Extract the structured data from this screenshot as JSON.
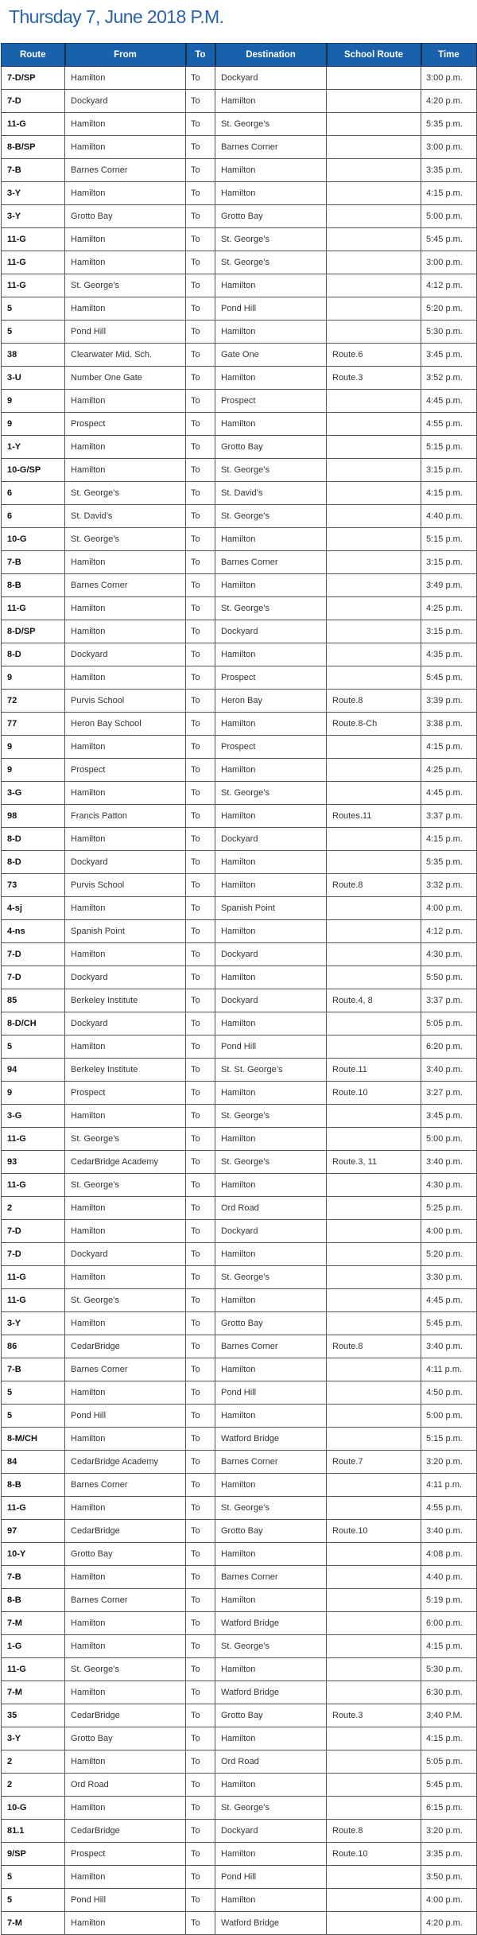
{
  "title": "Thursday 7, June 2018 P.M.",
  "colors": {
    "title": "#2a63ad",
    "header_bg": "#1a61ad",
    "header_text": "#ffffff"
  },
  "table": {
    "headers": [
      "Route",
      "From",
      "To",
      "Destination",
      "School Route",
      "Time"
    ],
    "rows": [
      [
        "7-D/SP",
        "Hamilton",
        "To",
        "Dockyard",
        "",
        "3:00 p.m."
      ],
      [
        "7-D",
        "Dockyard",
        "To",
        "Hamilton",
        "",
        "4:20 p.m."
      ],
      [
        "11-G",
        "Hamilton",
        "To",
        "St. George’s",
        "",
        "5:35 p.m."
      ],
      [
        "8-B/SP",
        "Hamilton",
        "To",
        "Barnes Corner",
        "",
        "3:00 p.m."
      ],
      [
        "7-B",
        "Barnes Corner",
        "To",
        "Hamilton",
        "",
        "3:35 p.m."
      ],
      [
        "3-Y",
        "Hamilton",
        "To",
        "Hamilton",
        "",
        "4:15 p.m."
      ],
      [
        "3-Y",
        "Grotto Bay",
        "To",
        "Grotto Bay",
        "",
        "5:00 p.m."
      ],
      [
        "11-G",
        "Hamilton",
        "To",
        "St. George’s",
        "",
        "5:45 p.m."
      ],
      [
        "11-G",
        "Hamilton",
        "To",
        "St. George’s",
        "",
        "3:00 p.m."
      ],
      [
        "11-G",
        "St. George’s",
        "To",
        "Hamilton",
        "",
        "4:12 p.m."
      ],
      [
        "5",
        "Hamilton",
        "To",
        "Pond Hill",
        "",
        "5:20 p.m."
      ],
      [
        "5",
        "Pond Hill",
        "To",
        "Hamilton",
        "",
        "5:30 p.m."
      ],
      [
        "38",
        "Clearwater Mid. Sch.",
        "To",
        "Gate One",
        "Route.6",
        "3:45 p.m."
      ],
      [
        "3-U",
        "Number One Gate",
        "To",
        "Hamilton",
        "Route.3",
        "3:52 p.m."
      ],
      [
        "9",
        "Hamilton",
        "To",
        "Prospect",
        "",
        "4:45 p.m."
      ],
      [
        "9",
        "Prospect",
        "To",
        "Hamilton",
        "",
        "4:55 p.m."
      ],
      [
        "1-Y",
        "Hamilton",
        "To",
        "Grotto Bay",
        "",
        "5:15 p.m."
      ],
      [
        "10-G/SP",
        "Hamilton",
        "To",
        "St. George’s",
        "",
        "3:15 p.m."
      ],
      [
        "6",
        "St. George’s",
        "To",
        "St. David’s",
        "",
        "4:15 p.m."
      ],
      [
        "6",
        "St. David’s",
        "To",
        "St. George’s",
        "",
        "4:40 p.m."
      ],
      [
        "10-G",
        "St. George’s",
        "To",
        "Hamilton",
        "",
        "5:15 p.m."
      ],
      [
        "7-B",
        "Hamilton",
        "To",
        "Barnes Corner",
        "",
        "3:15 p.m."
      ],
      [
        "8-B",
        "Barnes Corner",
        "To",
        "Hamilton",
        "",
        "3:49 p.m."
      ],
      [
        "11-G",
        "Hamilton",
        "To",
        "St. George’s",
        "",
        "4:25 p.m."
      ],
      [
        "8-D/SP",
        "Hamilton",
        "To",
        "Dockyard",
        "",
        "3:15 p.m."
      ],
      [
        "8-D",
        "Dockyard",
        "To",
        "Hamilton",
        "",
        "4:35 p.m."
      ],
      [
        "9",
        "Hamilton",
        "To",
        "Prospect",
        "",
        "5:45 p.m."
      ],
      [
        "72",
        "Purvis School",
        "To",
        "Heron Bay",
        "Route.8",
        "3:39 p.m."
      ],
      [
        "77",
        "Heron Bay School",
        "To",
        "Hamilton",
        "Route.8-Ch",
        "3:38 p.m."
      ],
      [
        "9",
        "Hamilton",
        "To",
        "Prospect",
        "",
        "4:15 p.m."
      ],
      [
        "9",
        "Prospect",
        "To",
        "Hamilton",
        "",
        "4:25 p.m."
      ],
      [
        "3-G",
        "Hamilton",
        "To",
        "St. George’s",
        "",
        "4:45 p.m."
      ],
      [
        "98",
        "Francis Patton",
        "To",
        "Hamilton",
        "Routes.11",
        "3:37 p.m."
      ],
      [
        "8-D",
        "Hamilton",
        "To",
        "Dockyard",
        "",
        "4:15 p.m."
      ],
      [
        "8-D",
        "Dockyard",
        "To",
        "Hamilton",
        "",
        "5:35 p.m."
      ],
      [
        "73",
        "Purvis School",
        "To",
        "Hamilton",
        "Route.8",
        "3:32 p.m."
      ],
      [
        "4-sj",
        "Hamilton",
        "To",
        "Spanish Point",
        "",
        "4:00 p.m."
      ],
      [
        "4-ns",
        "Spanish Point",
        "To",
        "Hamilton",
        "",
        "4:12 p.m."
      ],
      [
        "7-D",
        "Hamilton",
        "To",
        "Dockyard",
        "",
        "4:30 p.m."
      ],
      [
        "7-D",
        "Dockyard",
        "To",
        "Hamilton",
        "",
        "5:50 p.m."
      ],
      [
        "85",
        "Berkeley Institute",
        "To",
        "Dockyard",
        "Route.4, 8",
        "3:37 p.m."
      ],
      [
        "8-D/CH",
        "Dockyard",
        "To",
        "Hamilton",
        "",
        "5:05 p.m."
      ],
      [
        "5",
        "Hamilton",
        "To",
        "Pond Hill",
        "",
        "6:20 p.m."
      ],
      [
        "94",
        "Berkeley Institute",
        "To",
        "St. St. George’s",
        "Route.11",
        "3:40 p.m."
      ],
      [
        "9",
        "Prospect",
        "To",
        "Hamilton",
        "Route.10",
        "3:27 p.m."
      ],
      [
        "3-G",
        "Hamilton",
        "To",
        "St. George’s",
        "",
        "3:45 p.m."
      ],
      [
        "11-G",
        "St. George’s",
        "To",
        "Hamilton",
        "",
        "5:00 p.m."
      ],
      [
        "93",
        "CedarBridge Academy",
        "To",
        "St. George’s",
        "Route.3, 11",
        "3:40 p.m."
      ],
      [
        "11-G",
        "St. George’s",
        "To",
        "Hamilton",
        "",
        "4:30 p.m."
      ],
      [
        "2",
        "Hamilton",
        "To",
        "Ord Road",
        "",
        "5:25 p.m."
      ],
      [
        "7-D",
        "Hamilton",
        "To",
        "Dockyard",
        "",
        "4:00 p.m."
      ],
      [
        "7-D",
        "Dockyard",
        "To",
        "Hamilton",
        "",
        "5:20 p.m."
      ],
      [
        "11-G",
        "Hamilton",
        "To",
        "St. George’s",
        "",
        "3:30 p.m."
      ],
      [
        "11-G",
        "St. George’s",
        "To",
        "Hamilton",
        "",
        "4:45 p.m."
      ],
      [
        "3-Y",
        "Hamilton",
        "To",
        "Grotto Bay",
        "",
        "5:45 p.m."
      ],
      [
        "86",
        "CedarBridge",
        "To",
        "Barnes Corner",
        "Route.8",
        "3:40 p.m."
      ],
      [
        "7-B",
        "Barnes Corner",
        "To",
        "Hamilton",
        "",
        "4:11 p.m."
      ],
      [
        "5",
        "Hamilton",
        "To",
        "Pond Hill",
        "",
        "4:50 p.m."
      ],
      [
        "5",
        "Pond Hill",
        "To",
        "Hamilton",
        "",
        "5:00 p.m."
      ],
      [
        "8-M/CH",
        "Hamilton",
        "To",
        "Watford Bridge",
        "",
        "5:15 p.m."
      ],
      [
        "84",
        "CedarBridge Academy",
        "To",
        "Barnes Corner",
        "Route.7",
        "3:20 p.m."
      ],
      [
        "8-B",
        "Barnes Corner",
        "To",
        "Hamilton",
        "",
        "4:11 p.m."
      ],
      [
        "11-G",
        "Hamilton",
        "To",
        "St. George’s",
        "",
        "4:55 p.m."
      ],
      [
        "97",
        "CedarBridge",
        "To",
        "Grotto Bay",
        "Route.10",
        "3:40 p.m."
      ],
      [
        "10-Y",
        "Grotto Bay",
        "To",
        "Hamilton",
        "",
        "4:08 p.m."
      ],
      [
        "7-B",
        "Hamilton",
        "To",
        "Barnes Corner",
        "",
        "4:40 p.m."
      ],
      [
        "8-B",
        "Barnes Corner",
        "To",
        "Hamilton",
        "",
        "5:19 p.m."
      ],
      [
        "7-M",
        "Hamilton",
        "To",
        "Watford Bridge",
        "",
        "6:00 p.m."
      ],
      [
        "1-G",
        "Hamilton",
        "To",
        "St. George’s",
        "",
        "4:15 p.m."
      ],
      [
        "11-G",
        "St. George’s",
        "To",
        "Hamilton",
        "",
        "5:30 p.m."
      ],
      [
        "7-M",
        "Hamilton",
        "To",
        "Watford Bridge",
        "",
        "6:30 p.m."
      ],
      [
        "35",
        "CedarBridge",
        "To",
        "Grotto Bay",
        "Route.3",
        "3;40 P.M."
      ],
      [
        "3-Y",
        "Grotto Bay",
        "To",
        "Hamilton",
        "",
        "4:15 p.m."
      ],
      [
        "2",
        "Hamilton",
        "To",
        "Ord Road",
        "",
        "5:05 p.m."
      ],
      [
        "2",
        "Ord Road",
        "To",
        "Hamilton",
        "",
        "5:45 p.m."
      ],
      [
        "10-G",
        "Hamilton",
        "To",
        "St. George’s",
        "",
        "6:15 p.m."
      ],
      [
        "81.1",
        "CedarBridge",
        "To",
        "Dockyard",
        "Route.8",
        "3:20 p.m."
      ],
      [
        "9/SP",
        "Prospect",
        "To",
        "Hamilton",
        "Route.10",
        "3:35 p.m."
      ],
      [
        "5",
        "Hamilton",
        "To",
        "Pond Hill",
        "",
        "3:50 p.m."
      ],
      [
        "5",
        "Pond Hill",
        "To",
        "Hamilton",
        "",
        "4:00 p.m."
      ],
      [
        "7-M",
        "Hamilton",
        "To",
        "Watford Bridge",
        "",
        "4:20 p.m."
      ]
    ]
  }
}
